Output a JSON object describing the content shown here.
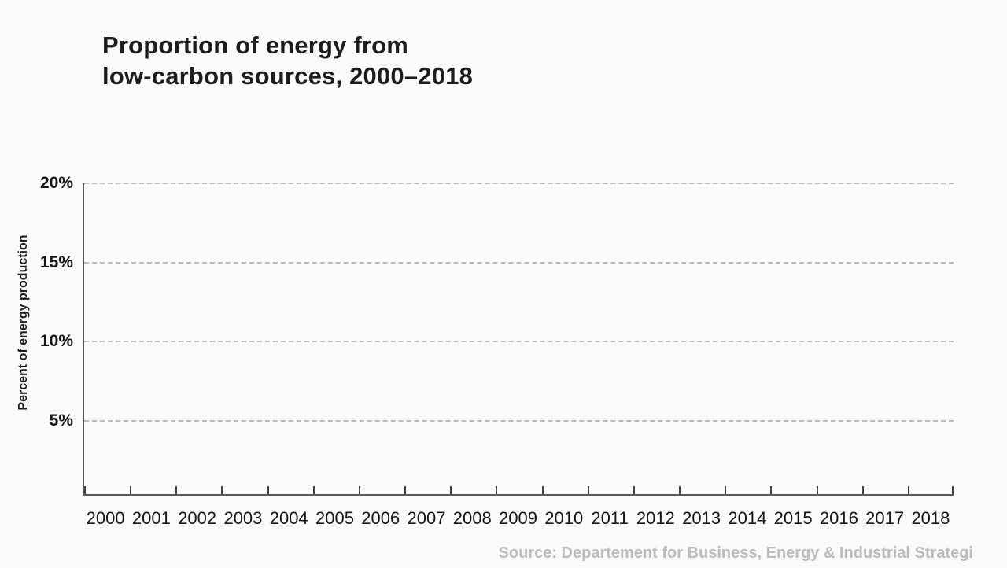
{
  "chart_data": {
    "type": "line",
    "title": "Proportion of energy from low-carbon sources, 2000–2018",
    "title_lines": [
      "Proportion of energy from",
      "low-carbon sources, 2000–2018"
    ],
    "xlabel": "",
    "ylabel": "Percent of energy production",
    "x": [
      2000,
      2001,
      2002,
      2003,
      2004,
      2005,
      2006,
      2007,
      2008,
      2009,
      2010,
      2011,
      2012,
      2013,
      2014,
      2015,
      2016,
      2017,
      2018
    ],
    "series": [],
    "note": "Axes, gridlines and tick labels are drawn but no data series is plotted (empty initial frame of the chart)",
    "ylim": [
      0,
      20
    ],
    "y_ticks": [
      {
        "value": 20,
        "label": "20%"
      },
      {
        "value": 15,
        "label": "15%"
      },
      {
        "value": 10,
        "label": "10%"
      },
      {
        "value": 5,
        "label": "5%"
      }
    ],
    "grid": "horizontal dashed gridlines at each y tick; vertical gridlines off",
    "legend": "none",
    "source": "Source: Departement for Business, Energy & Industrial Strategi"
  },
  "colors": {
    "background": "#fafafa",
    "title_text": "#1d1d1d",
    "axis_line": "#59595b",
    "tick_mark": "#404040",
    "gridline": "#bababa",
    "tick_label": "#161616",
    "source_text": "#bcbcbc"
  }
}
